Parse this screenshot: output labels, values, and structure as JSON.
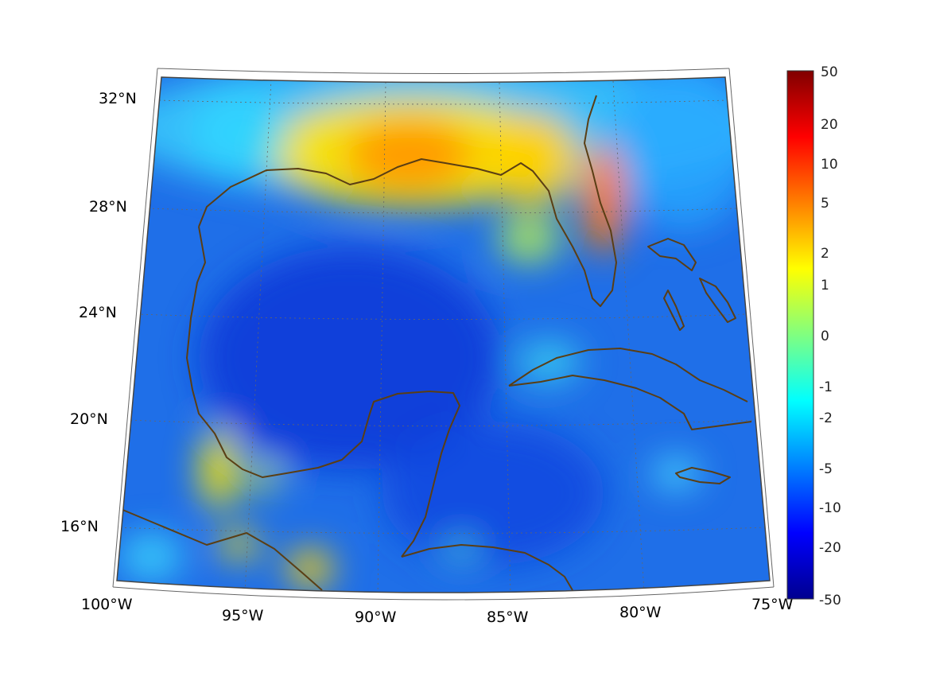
{
  "map": {
    "lon_range": [
      -100,
      -75
    ],
    "lat_range": [
      14,
      33
    ],
    "graticule": true,
    "coastline_color": "#5a3e14",
    "lon_labels": [
      {
        "lon": -100,
        "text": "100°W"
      },
      {
        "lon": -95,
        "text": "95°W"
      },
      {
        "lon": -90,
        "text": "90°W"
      },
      {
        "lon": -85,
        "text": "85°W"
      },
      {
        "lon": -80,
        "text": "80°W"
      },
      {
        "lon": -75,
        "text": "75°W"
      }
    ],
    "lat_labels": [
      {
        "lat": 32,
        "text": "32°N"
      },
      {
        "lat": 28,
        "text": "28°N"
      },
      {
        "lat": 24,
        "text": "24°N"
      },
      {
        "lat": 20,
        "text": "20°N"
      },
      {
        "lat": 16,
        "text": "16°N"
      }
    ]
  },
  "colorbar": {
    "colormap": "jet",
    "ticks": [
      "50",
      "20",
      "10",
      "5",
      "2",
      "1",
      "0",
      "-1",
      "-2",
      "-5",
      "-10",
      "-20",
      "-50"
    ]
  }
}
